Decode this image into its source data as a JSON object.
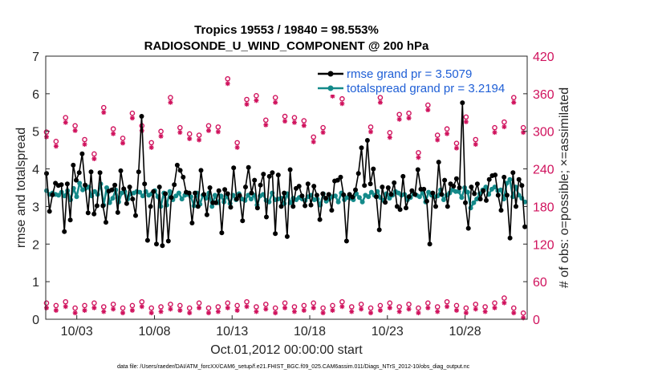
{
  "chart_data": {
    "type": "line",
    "title": "Tropics 19553 / 19840 = 98.553%",
    "subtitle": "RADIOSONDE_U_WIND_COMPONENT @ 200 hPa",
    "xlabel": "Oct.01,2012 00:00:00 start",
    "ylabel_left": "rmse and totalspread",
    "ylabel_right": "# of obs: o=possible; ×=assimilated",
    "footnote": "data file: /Users/raeder/DAI/ATM_forcXX/CAM6_setup/f.e21.FHIST_BGC.f09_025.CAM6assim.011/Diags_NTrS_2012-10/obs_diag_output.nc",
    "xlim": [
      1.0,
      32.0
    ],
    "ylim_left": [
      0,
      7
    ],
    "ylim_right": [
      0,
      420
    ],
    "xticks": [
      3,
      8,
      13,
      18,
      23,
      28
    ],
    "xtick_labels": [
      "10/03",
      "10/08",
      "10/13",
      "10/18",
      "10/23",
      "10/28"
    ],
    "yticks_left": [
      "0",
      "1",
      "2",
      "3",
      "4",
      "5",
      "6",
      "7"
    ],
    "yticks_right": [
      "0",
      "60",
      "120",
      "180",
      "240",
      "300",
      "360",
      "420"
    ],
    "colors": {
      "rmse": "#000000",
      "spread": "#148a8a",
      "obs": "#d0125d",
      "legend_text": "#1f5fd6"
    },
    "series": [
      {
        "name": "rmse grand pr = 3.5079",
        "axis": "left",
        "values": [
          3.88,
          2.87,
          3.31,
          3.62,
          3.56,
          3.58,
          2.33,
          3.6,
          2.64,
          4.1,
          3.7,
          3.9,
          4.4,
          3.57,
          2.83,
          3.92,
          2.8,
          3.02,
          3.9,
          3.02,
          2.58,
          3.41,
          3.44,
          3.57,
          2.84,
          3.95,
          3.47,
          3.08,
          3.52,
          3.2,
          2.76,
          3.92,
          5.4,
          3.6,
          2.1,
          3.0,
          3.4,
          2.0,
          3.52,
          1.96,
          3.34,
          2.08,
          3.24,
          3.58,
          4.1,
          3.96,
          3.78,
          3.38,
          3.36,
          2.56,
          3.36,
          3.0,
          3.96,
          3.32,
          2.78,
          3.5,
          3.1,
          3.1,
          3.42,
          2.3,
          3.45,
          3.34,
          2.98,
          4.03,
          3.2,
          3.29,
          2.62,
          3.52,
          4.04,
          3.36,
          3.7,
          2.96,
          3.57,
          3.86,
          2.72,
          3.8,
          3.9,
          2.28,
          3.84,
          3.0,
          3.36,
          2.2,
          3.98,
          3.0,
          3.48,
          3.54,
          3.28,
          3.02,
          3.6,
          3.04,
          3.54,
          3.3,
          2.65,
          3.34,
          3.22,
          3.32,
          2.9,
          3.68,
          3.7,
          3.78,
          3.31,
          2.08,
          3.32,
          3.25,
          3.44,
          3.88,
          4.56,
          3.56,
          4.76,
          3.6,
          4.0,
          3.26,
          2.38,
          3.52,
          3.11,
          3.5,
          3.32,
          3.63,
          3.0,
          2.92,
          3.8,
          2.96,
          3.26,
          3.42,
          3.32,
          3.98,
          3.46,
          3.46,
          3.14,
          2.0,
          3.36,
          3.0,
          4.18,
          3.32,
          3.7,
          3.0,
          3.6,
          3.54,
          3.74,
          3.5,
          5.76,
          3.1,
          2.42,
          3.52,
          3.34,
          3.6,
          3.2,
          3.42,
          3.16,
          3.72,
          3.82,
          3.84,
          3.3,
          2.9,
          3.78,
          3.3,
          2.16,
          3.9,
          3.0,
          3.72,
          3.56,
          2.46
        ]
      },
      {
        "name": "totalspread grand pr = 3.2194",
        "axis": "left",
        "values": [
          3.42,
          3.32,
          3.36,
          3.32,
          3.3,
          3.38,
          3.28,
          3.42,
          3.18,
          3.48,
          3.26,
          3.62,
          3.44,
          3.48,
          3.52,
          3.28,
          3.4,
          3.32,
          3.6,
          3.04,
          3.5,
          3.1,
          3.22,
          3.44,
          3.12,
          3.36,
          3.4,
          3.2,
          3.34,
          3.36,
          3.4,
          3.38,
          3.28,
          3.4,
          3.3,
          3.34,
          3.42,
          3.26,
          3.0,
          3.36,
          3.04,
          3.4,
          3.18,
          3.28,
          3.36,
          3.2,
          3.3,
          3.32,
          3.26,
          3.02,
          3.36,
          3.06,
          3.3,
          3.22,
          3.36,
          3.0,
          3.3,
          3.1,
          3.28,
          3.12,
          3.28,
          3.08,
          3.3,
          3.18,
          3.34,
          3.2,
          3.16,
          3.3,
          3.2,
          3.3,
          3.04,
          3.28,
          3.32,
          3.16,
          3.12,
          3.36,
          3.18,
          3.2,
          3.22,
          3.08,
          3.34,
          3.1,
          3.22,
          3.18,
          3.24,
          3.2,
          3.16,
          3.26,
          3.3,
          3.18,
          3.2,
          3.04,
          3.34,
          3.14,
          3.2,
          3.26,
          3.28,
          3.12,
          3.36,
          3.18,
          3.24,
          3.22,
          3.18,
          3.34,
          3.24,
          3.12,
          3.3,
          3.26,
          3.38,
          3.3,
          3.4,
          3.24,
          3.16,
          3.34,
          3.22,
          3.3,
          3.4,
          3.36,
          3.3,
          3.32,
          3.18,
          3.24,
          3.34,
          3.3,
          3.26,
          3.36,
          3.12,
          3.38,
          3.3,
          3.26,
          3.28,
          3.44,
          3.18,
          3.3,
          3.36,
          3.44,
          3.4,
          3.4,
          3.24,
          3.5,
          3.38,
          2.96,
          3.1,
          3.2,
          3.34,
          3.44,
          3.52,
          3.32,
          3.46,
          3.52,
          3.42,
          3.44,
          3.2,
          3.62,
          3.72,
          3.26,
          3.52,
          3.3,
          3.22,
          3.12
        ]
      },
      {
        "name": "possible obs (daily peaks)",
        "axis": "right",
        "values": [
          295,
          280,
          318,
          305,
          283,
          260,
          334,
          300,
          285,
          325,
          305,
          278,
          296,
          350,
          302,
          292,
          290,
          305,
          303,
          380,
          278,
          347,
          353,
          314,
          350,
          320,
          318,
          313,
          287,
          302,
          360,
          348,
          385,
          375,
          303,
          350,
          294,
          323,
          325,
          262,
          338,
          290,
          300,
          277,
          319,
          283,
          375,
          302,
          311,
          350,
          302
        ]
      },
      {
        "name": "possible obs (daily troughs)",
        "axis": "right",
        "values": [
          22,
          18,
          24,
          14,
          18,
          22,
          16,
          20,
          14,
          18,
          24,
          14,
          16,
          20,
          18,
          14,
          22,
          14,
          16,
          22,
          18,
          24,
          16,
          20,
          14,
          22,
          16,
          18,
          22,
          14,
          18,
          24,
          16,
          20,
          14,
          18,
          22,
          16,
          20,
          14,
          22,
          16,
          24,
          18,
          14,
          20,
          16,
          22,
          30,
          14,
          6
        ]
      }
    ],
    "legend": {
      "placement": "top-right",
      "entries": [
        "rmse grand pr = 3.5079",
        "totalspread grand pr = 3.2194"
      ]
    },
    "grid": false
  }
}
